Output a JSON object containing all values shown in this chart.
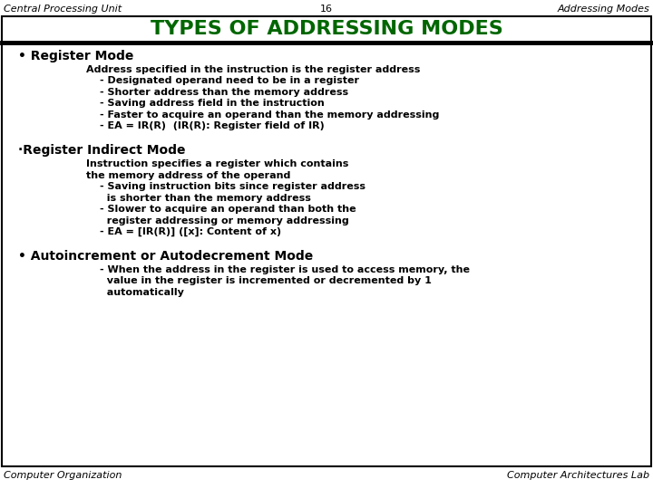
{
  "header_left": "Central Processing Unit",
  "header_center": "16",
  "header_right": "Addressing Modes",
  "title": "TYPES OF ADDRESSING MODES",
  "title_color": "#006600",
  "footer_left": "Computer Organization",
  "footer_right": "Computer Architectures Lab",
  "bg_color": "#ffffff",
  "border_color": "#000000",
  "text_color": "#000000",
  "header_font_size": 8,
  "title_font_size": 16,
  "body_font_size": 8,
  "footer_font_size": 8,
  "heading_font_size": 10,
  "sections": [
    {
      "bullet": "•",
      "heading": " Register Mode",
      "indent1_lines": [
        "Address specified in the instruction is the register address"
      ],
      "indent2_lines": [
        "- Designated operand need to be in a register",
        "- Shorter address than the memory address",
        "- Saving address field in the instruction",
        "- Faster to acquire an operand than the memory addressing",
        "- EA = IR(R)  (IR(R): Register field of IR)"
      ]
    },
    {
      "bullet": "·",
      "heading": "Register Indirect Mode",
      "indent1_lines": [
        "Instruction specifies a register which contains",
        "the memory address of the operand"
      ],
      "indent2_lines": [
        "- Saving instruction bits since register address",
        "  is shorter than the memory address",
        "- Slower to acquire an operand than both the",
        "  register addressing or memory addressing",
        "- EA = [IR(R)] ([x]: Content of x)"
      ]
    },
    {
      "bullet": "•",
      "heading": " Autoincrement or Autodecrement Mode",
      "indent1_lines": [],
      "indent2_lines": [
        "- When the address in the register is used to access memory, the",
        "  value in the register is incremented or decremented by 1",
        "  automatically"
      ]
    }
  ]
}
